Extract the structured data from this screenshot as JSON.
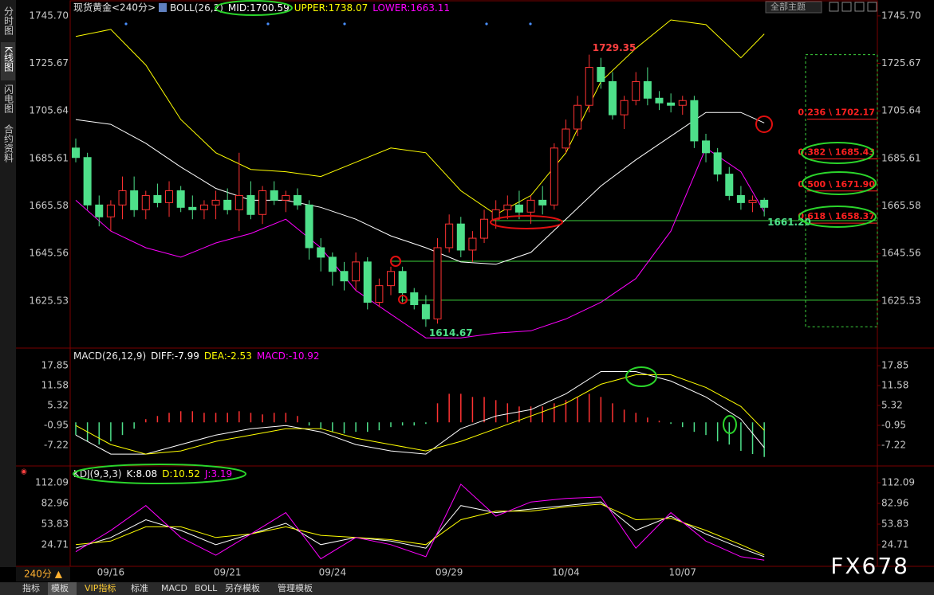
{
  "app": {
    "sidebar_tabs": [
      "分时图",
      "K线图",
      "闪电图",
      "合约资料"
    ],
    "symbol": "现货黄金<240分>",
    "theme_button": "全部主题",
    "period_label": "240分 ▲",
    "bottom_tabs": [
      "指标",
      "模板",
      "VIP指标",
      "标准",
      "MACD",
      "BOLL",
      "另存模板",
      "管理模板"
    ],
    "watermark": "FX678"
  },
  "chart_data": [
    {
      "type": "candlestick",
      "indicator": "BOLL(26,2)",
      "categories": [
        null,
        null,
        null,
        "09/16",
        null,
        null,
        null,
        null,
        null,
        null,
        null,
        null,
        null,
        "09/21",
        null,
        null,
        null,
        null,
        null,
        null,
        null,
        null,
        "09/24",
        null,
        null,
        null,
        null,
        null,
        null,
        null,
        null,
        null,
        "09/29",
        null,
        null,
        null,
        null,
        null,
        null,
        null,
        null,
        null,
        "10/04",
        null,
        null,
        null,
        null,
        null,
        null,
        null,
        null,
        null,
        "10/07",
        null,
        null,
        null,
        null,
        null,
        null,
        null
      ],
      "ohlc": [
        [
          1690,
          1694,
          1684,
          1686
        ],
        [
          1686,
          1688,
          1664,
          1666
        ],
        [
          1666,
          1670,
          1657,
          1661
        ],
        [
          1661,
          1668,
          1655,
          1666
        ],
        [
          1666,
          1678,
          1660,
          1672
        ],
        [
          1672,
          1678,
          1661,
          1664
        ],
        [
          1664,
          1672,
          1660,
          1670
        ],
        [
          1670,
          1675,
          1665,
          1667
        ],
        [
          1667,
          1676,
          1661,
          1672
        ],
        [
          1672,
          1674,
          1663,
          1665
        ],
        [
          1665,
          1670,
          1660,
          1664
        ],
        [
          1664,
          1668,
          1660,
          1666
        ],
        [
          1666,
          1672,
          1660,
          1668
        ],
        [
          1668,
          1673,
          1662,
          1664
        ],
        [
          1664,
          1688,
          1655,
          1670
        ],
        [
          1670,
          1676,
          1660,
          1662
        ],
        [
          1662,
          1674,
          1658,
          1672
        ],
        [
          1672,
          1676,
          1666,
          1668
        ],
        [
          1668,
          1672,
          1663,
          1670
        ],
        [
          1670,
          1673,
          1664,
          1666
        ],
        [
          1666,
          1668,
          1643,
          1648
        ],
        [
          1648,
          1652,
          1638,
          1644
        ],
        [
          1644,
          1646,
          1632,
          1638
        ],
        [
          1638,
          1642,
          1630,
          1634
        ],
        [
          1634,
          1646,
          1630,
          1642
        ],
        [
          1642,
          1644,
          1622,
          1625
        ],
        [
          1625,
          1635,
          1623,
          1632
        ],
        [
          1632,
          1640,
          1628,
          1638
        ],
        [
          1638,
          1640,
          1625,
          1629
        ],
        [
          1629,
          1631,
          1622,
          1624
        ],
        [
          1624,
          1628,
          1614.67,
          1618
        ],
        [
          1618,
          1652,
          1616,
          1648
        ],
        [
          1648,
          1662,
          1646,
          1658
        ],
        [
          1658,
          1661,
          1644,
          1647
        ],
        [
          1647,
          1655,
          1642,
          1652
        ],
        [
          1652,
          1664,
          1650,
          1660
        ],
        [
          1660,
          1668,
          1656,
          1664
        ],
        [
          1664,
          1670,
          1660,
          1666
        ],
        [
          1666,
          1672,
          1660,
          1663
        ],
        [
          1663,
          1670,
          1658,
          1668
        ],
        [
          1668,
          1674,
          1662,
          1666
        ],
        [
          1666,
          1692,
          1664,
          1690
        ],
        [
          1690,
          1702,
          1688,
          1698
        ],
        [
          1698,
          1712,
          1695,
          1708
        ],
        [
          1708,
          1729.35,
          1705,
          1724
        ],
        [
          1724,
          1728,
          1715,
          1718
        ],
        [
          1718,
          1722,
          1702,
          1704
        ],
        [
          1704,
          1712,
          1698,
          1710
        ],
        [
          1710,
          1722,
          1708,
          1718
        ],
        [
          1718,
          1724,
          1708,
          1711
        ],
        [
          1711,
          1714,
          1706,
          1709
        ],
        [
          1709,
          1713,
          1705,
          1708
        ],
        [
          1708,
          1712,
          1704,
          1710
        ],
        [
          1710,
          1712,
          1690,
          1693
        ],
        [
          1693,
          1696,
          1684,
          1688
        ],
        [
          1688,
          1690,
          1676,
          1679
        ],
        [
          1679,
          1682,
          1668,
          1670
        ],
        [
          1670,
          1674,
          1664,
          1667
        ],
        [
          1667,
          1670,
          1663,
          1668
        ],
        [
          1668,
          1669,
          1661.2,
          1665
        ]
      ],
      "up_color": "#ff3232",
      "down_color": "#4ee08a",
      "x": [
        0,
        3,
        6,
        9,
        12,
        15,
        18,
        21,
        24,
        27,
        30,
        33,
        36,
        39,
        42,
        45,
        48,
        51,
        54,
        57,
        59
      ],
      "series": [
        {
          "name": "MID:",
          "color": "#ffffff",
          "current": 1700.59,
          "values": [
            1702,
            1700,
            1692,
            1682,
            1673,
            1668,
            1668,
            1665,
            1660,
            1653,
            1648,
            1642,
            1641,
            1646,
            1660,
            1674,
            1685,
            1695,
            1705,
            1705,
            1700.59
          ]
        },
        {
          "name": "UPPER:",
          "color": "#ffff00",
          "current": 1738.07,
          "values": [
            1737,
            1740,
            1725,
            1702,
            1688,
            1681,
            1680,
            1678,
            1684,
            1690,
            1688,
            1672,
            1662,
            1670,
            1688,
            1718,
            1732,
            1744,
            1742,
            1728,
            1738.07
          ]
        },
        {
          "name": "LOWER:",
          "color": "#ff00ff",
          "current": 1663.11,
          "values": [
            1668,
            1655,
            1648,
            1644,
            1650,
            1654,
            1660,
            1648,
            1630,
            1620,
            1610,
            1610,
            1612,
            1613,
            1618,
            1625,
            1635,
            1655,
            1690,
            1680,
            1663.11
          ]
        }
      ],
      "extreme_labels": [
        {
          "value": 1729.35,
          "label": "1729.35",
          "color": "#ff4040"
        },
        {
          "value": 1614.67,
          "label": "1614.67",
          "color": "#4ee08a"
        },
        {
          "value": 1661.2,
          "label": "1661.20",
          "color": "#4ee08a"
        }
      ],
      "support_lines": [
        1659.4,
        1642.3,
        1625.9
      ],
      "support_color": "#3cd23c",
      "fib_levels": [
        {
          "value": 1702.17,
          "label": "0.236 \\ 1702.17"
        },
        {
          "value": 1685.43,
          "label": "0.382 \\ 1685.43"
        },
        {
          "value": 1671.9,
          "label": "0.500 \\ 1671.90"
        },
        {
          "value": 1658.37,
          "label": "0.618 \\ 1658.37"
        }
      ],
      "fib_color": "#ff2020",
      "ylim": [
        1605.7,
        1750.7
      ],
      "yticks": [
        {
          "value": 1745.7,
          "label": "1745.70"
        },
        1725.67,
        1705.64,
        1685.61,
        1665.58,
        1645.56,
        1625.53
      ]
    },
    {
      "type": "macd",
      "indicator": "MACD(26,12,9)",
      "x": [
        0,
        3,
        6,
        9,
        12,
        15,
        18,
        21,
        24,
        27,
        30,
        33,
        36,
        39,
        42,
        45,
        48,
        51,
        54,
        57,
        59
      ],
      "series": [
        {
          "name": "DIFF:",
          "color": "#ffffff",
          "current": -7.99,
          "values": [
            -4,
            -10,
            -10,
            -7,
            -4,
            -2,
            -1,
            -3,
            -7,
            -9,
            -10,
            -2,
            2,
            4,
            9,
            16,
            16,
            13,
            8,
            1,
            -7.99
          ]
        },
        {
          "name": "DEA:",
          "color": "#ffff00",
          "current": -2.53,
          "values": [
            -1,
            -7,
            -10,
            -9,
            -6,
            -4,
            -2,
            -2,
            -5,
            -7,
            -9,
            -6,
            -2,
            2,
            6,
            12,
            15,
            15,
            11,
            5,
            -2.53
          ]
        }
      ],
      "histogram": {
        "name": "MACD:",
        "color": "#ff00ff",
        "current": -10.92,
        "up_color": "#ff3232",
        "down_color": "#4ee08a",
        "values": [
          -4,
          -6,
          -7,
          -6,
          -4,
          -2,
          1,
          2,
          3,
          3.5,
          3.5,
          3,
          3,
          3,
          3.5,
          3,
          2.5,
          3,
          3,
          2,
          -1,
          -2,
          -3,
          -3.5,
          -3,
          -3,
          -2.5,
          -1.5,
          -1,
          -1,
          -0.5,
          6,
          9,
          9,
          8,
          8,
          7,
          6,
          5,
          5,
          5,
          6,
          7,
          8,
          9,
          8,
          6,
          4,
          3,
          1.5,
          0.5,
          -0.5,
          -1.5,
          -3,
          -4,
          -6,
          -7,
          -9,
          -10,
          -10.92
        ]
      },
      "ylim": [
        -13,
        21.9
      ],
      "yticks": [
        17.85,
        11.58,
        5.32,
        -0.95,
        -7.22
      ]
    },
    {
      "type": "kdj",
      "indicator": "KDJ(9,3,3)",
      "x": [
        0,
        3,
        6,
        9,
        12,
        15,
        18,
        21,
        24,
        27,
        30,
        33,
        36,
        39,
        42,
        45,
        48,
        51,
        54,
        57,
        59
      ],
      "series": [
        {
          "name": "K:",
          "color": "#ffffff",
          "current": 8.08,
          "values": [
            20,
            35,
            60,
            45,
            25,
            40,
            55,
            25,
            35,
            30,
            20,
            80,
            70,
            75,
            80,
            85,
            45,
            65,
            40,
            20,
            8.08
          ]
        },
        {
          "name": "D:",
          "color": "#ffff00",
          "current": 10.52,
          "values": [
            25,
            30,
            50,
            50,
            35,
            40,
            50,
            38,
            35,
            32,
            25,
            60,
            72,
            72,
            78,
            82,
            60,
            62,
            45,
            25,
            10.52
          ]
        },
        {
          "name": "J:",
          "color": "#ff00ff",
          "current": 3.19,
          "values": [
            15,
            45,
            80,
            35,
            10,
            40,
            70,
            5,
            35,
            25,
            8,
            110,
            65,
            85,
            90,
            92,
            20,
            70,
            30,
            8,
            3.19
          ]
        }
      ],
      "ylim": [
        -4.4,
        128.9
      ],
      "yticks": [
        112.09,
        82.96,
        53.83,
        24.71
      ]
    }
  ]
}
